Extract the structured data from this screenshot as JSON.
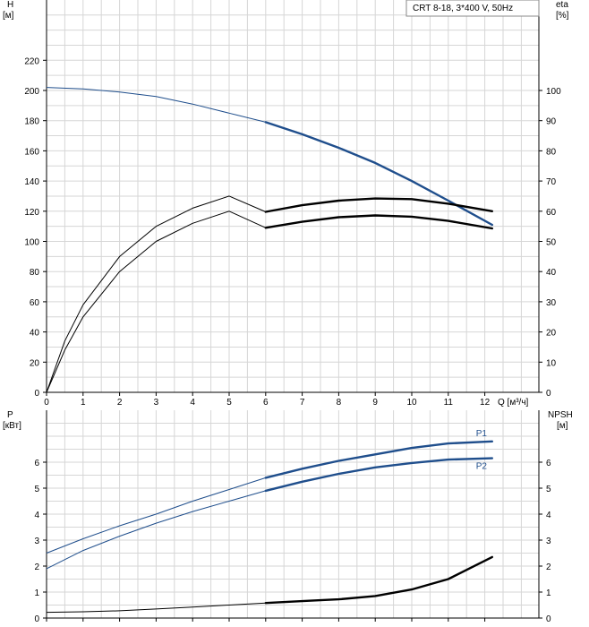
{
  "legend_box": "CRT 8-18, 3*400 V, 50Hz",
  "colors": {
    "blue": "#1f4e8c",
    "grid": "#d6d6d6",
    "black": "#000000"
  },
  "chart_data": [
    {
      "type": "line",
      "y_left": {
        "label_top": "H",
        "label_unit": "[м]",
        "ticks": [
          0,
          20,
          40,
          60,
          80,
          100,
          120,
          140,
          160,
          180,
          200,
          220
        ],
        "range": [
          0,
          240
        ]
      },
      "y_right": {
        "label_top": "eta",
        "label_unit": "[%]",
        "ticks": [
          0,
          10,
          20,
          30,
          40,
          50,
          60,
          70,
          80,
          90,
          100
        ],
        "range": [
          0,
          120
        ]
      },
      "x": {
        "ticks": [
          0,
          1,
          2,
          3,
          4,
          5,
          6,
          7,
          8,
          9,
          10,
          11,
          12
        ],
        "unit_label": "Q [м³/ч]",
        "range": [
          0,
          13.5
        ]
      },
      "grid": true,
      "series": [
        {
          "axis": "left",
          "color": "blue",
          "points": [
            [
              0,
              202
            ],
            [
              1,
              201
            ],
            [
              2,
              199
            ],
            [
              3,
              196
            ],
            [
              4,
              191
            ],
            [
              5,
              185
            ],
            [
              6,
              179
            ],
            [
              7,
              171
            ],
            [
              8,
              162
            ],
            [
              9,
              152
            ],
            [
              10,
              140
            ],
            [
              11,
              127
            ],
            [
              12.2,
              111
            ]
          ],
          "op_start": 6
        },
        {
          "axis": "right",
          "color": "black",
          "points": [
            [
              0,
              0
            ],
            [
              0.5,
              17
            ],
            [
              1,
              29
            ],
            [
              2,
              45
            ],
            [
              3,
              55
            ],
            [
              4,
              61
            ],
            [
              5,
              65
            ],
            [
              6,
              59.8
            ],
            [
              7,
              62
            ],
            [
              8,
              63.5
            ],
            [
              9,
              64.2
            ],
            [
              10,
              64
            ],
            [
              11,
              62.5
            ],
            [
              12.2,
              60
            ]
          ],
          "op_start": 6
        },
        {
          "axis": "right",
          "color": "black",
          "points": [
            [
              0,
              0
            ],
            [
              0.5,
              14
            ],
            [
              1,
              25
            ],
            [
              2,
              40
            ],
            [
              3,
              50
            ],
            [
              4,
              56
            ],
            [
              5,
              60
            ],
            [
              6,
              54.5
            ],
            [
              7,
              56.5
            ],
            [
              8,
              58
            ],
            [
              9,
              58.6
            ],
            [
              10,
              58.2
            ],
            [
              11,
              56.8
            ],
            [
              12.2,
              54.3
            ]
          ],
          "op_start": 6
        }
      ]
    },
    {
      "type": "line",
      "y_left": {
        "label_top": "P",
        "label_unit": "[кВт]",
        "ticks": [
          0,
          1,
          2,
          3,
          4,
          5,
          6
        ],
        "range": [
          0,
          7
        ]
      },
      "y_right": {
        "label_top": "NPSH",
        "label_unit": "[м]",
        "ticks": [
          0,
          1,
          2,
          3,
          4,
          5,
          6
        ],
        "range": [
          0,
          7
        ]
      },
      "x": {
        "range": [
          0,
          13.5
        ]
      },
      "grid": true,
      "series": [
        {
          "name": "P1",
          "axis": "left",
          "color": "blue",
          "points": [
            [
              0,
              2.5
            ],
            [
              1,
              3.05
            ],
            [
              2,
              3.55
            ],
            [
              3,
              4.0
            ],
            [
              4,
              4.5
            ],
            [
              5,
              4.95
            ],
            [
              6,
              5.4
            ],
            [
              7,
              5.75
            ],
            [
              8,
              6.05
            ],
            [
              9,
              6.3
            ],
            [
              10,
              6.55
            ],
            [
              11,
              6.72
            ],
            [
              12.2,
              6.8
            ]
          ],
          "op_start": 6
        },
        {
          "name": "P2",
          "axis": "left",
          "color": "blue",
          "points": [
            [
              0,
              1.9
            ],
            [
              1,
              2.6
            ],
            [
              2,
              3.15
            ],
            [
              3,
              3.65
            ],
            [
              4,
              4.1
            ],
            [
              5,
              4.5
            ],
            [
              6,
              4.9
            ],
            [
              7,
              5.25
            ],
            [
              8,
              5.55
            ],
            [
              9,
              5.8
            ],
            [
              10,
              5.97
            ],
            [
              11,
              6.1
            ],
            [
              12.2,
              6.15
            ]
          ],
          "op_start": 6
        },
        {
          "axis": "right",
          "color": "black",
          "points": [
            [
              0,
              0.22
            ],
            [
              1,
              0.24
            ],
            [
              2,
              0.28
            ],
            [
              3,
              0.35
            ],
            [
              4,
              0.42
            ],
            [
              5,
              0.5
            ],
            [
              6,
              0.58
            ],
            [
              7,
              0.65
            ],
            [
              8,
              0.72
            ],
            [
              9,
              0.85
            ],
            [
              10,
              1.1
            ],
            [
              11,
              1.5
            ],
            [
              12.2,
              2.35
            ]
          ],
          "op_start": 6
        }
      ]
    }
  ]
}
